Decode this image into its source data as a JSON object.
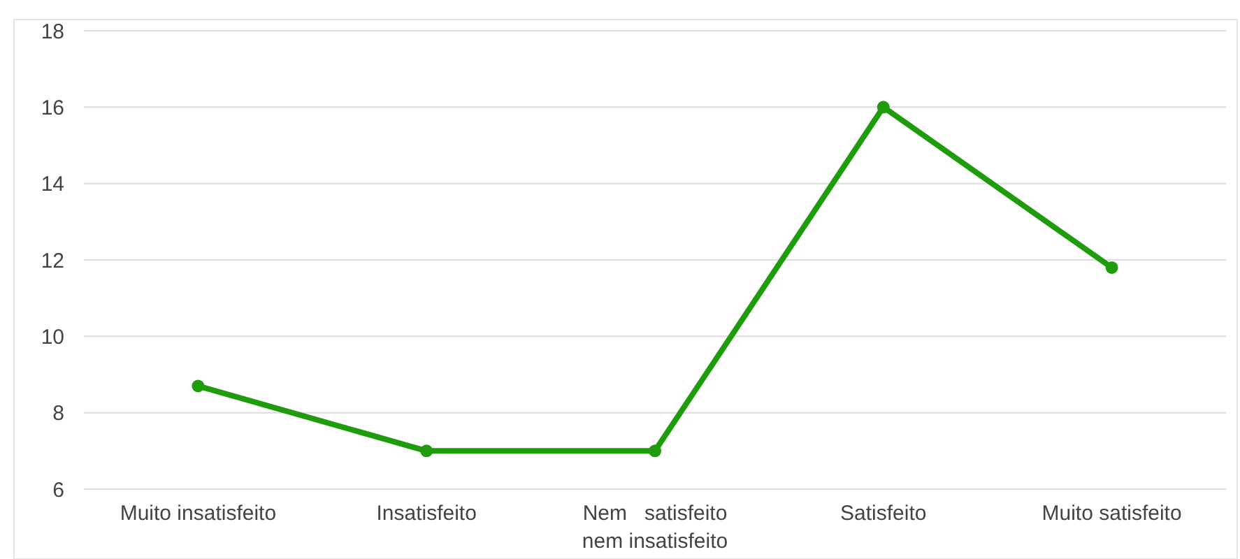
{
  "chart_data": {
    "type": "line",
    "categories": [
      "Muito insatisfeito",
      "Insatisfeito",
      "Nem   satisfeito nem insatisfeito",
      "Satisfeito",
      "Muito satisfeito"
    ],
    "series": [
      {
        "color": "#1e9c0c",
        "values": [
          8.7,
          7,
          7,
          16,
          11.8
        ]
      }
    ],
    "ylim": [
      6,
      18
    ],
    "yticks": [
      6,
      8,
      10,
      12,
      14,
      16,
      18
    ],
    "grid": "y",
    "marker": "circle"
  }
}
